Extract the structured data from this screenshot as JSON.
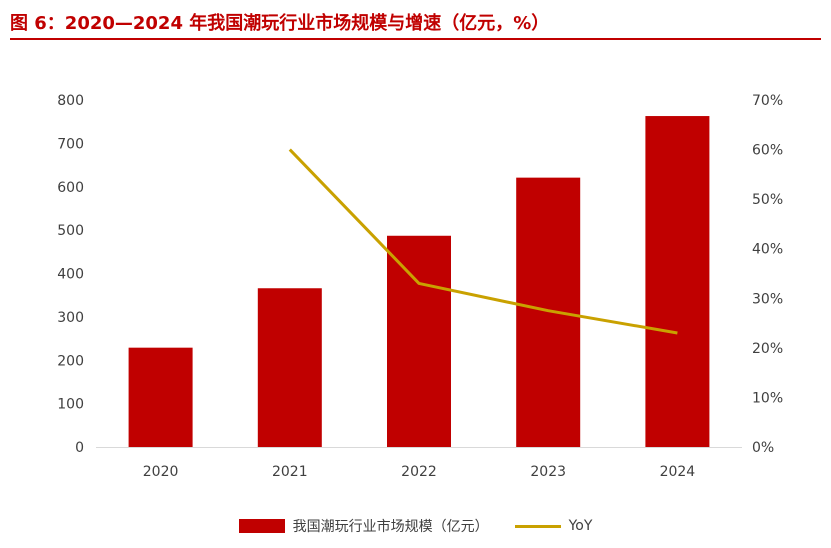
{
  "figure": {
    "title": "图 6：2020—2024 年我国潮玩行业市场规模与增速（亿元，%）"
  },
  "legend": {
    "bar_label": "我国潮玩行业市场规模（亿元）",
    "line_label": "YoY"
  },
  "colors": {
    "bar": "#c00000",
    "line": "#c9a100",
    "title": "#c00000",
    "axis_text": "#404040"
  },
  "chart_data": {
    "type": "bar",
    "categories": [
      "2020",
      "2021",
      "2022",
      "2023",
      "2024"
    ],
    "series": [
      {
        "name": "我国潮玩行业市场规模（亿元）",
        "type": "bar",
        "axis": "left",
        "values": [
          229,
          366,
          487,
          621,
          763
        ]
      },
      {
        "name": "YoY",
        "type": "line",
        "axis": "right",
        "values": [
          null,
          0.6,
          0.33,
          0.275,
          0.23
        ]
      }
    ],
    "y_left": {
      "min": 0,
      "max": 800,
      "step": 100,
      "ticks": [
        "0",
        "100",
        "200",
        "300",
        "400",
        "500",
        "600",
        "700",
        "800"
      ]
    },
    "y_right": {
      "min": 0,
      "max": 0.7,
      "step": 0.1,
      "ticks": [
        "0%",
        "10%",
        "20%",
        "30%",
        "40%",
        "50%",
        "60%",
        "70%"
      ]
    },
    "grid": false,
    "legend_position": "bottom"
  }
}
